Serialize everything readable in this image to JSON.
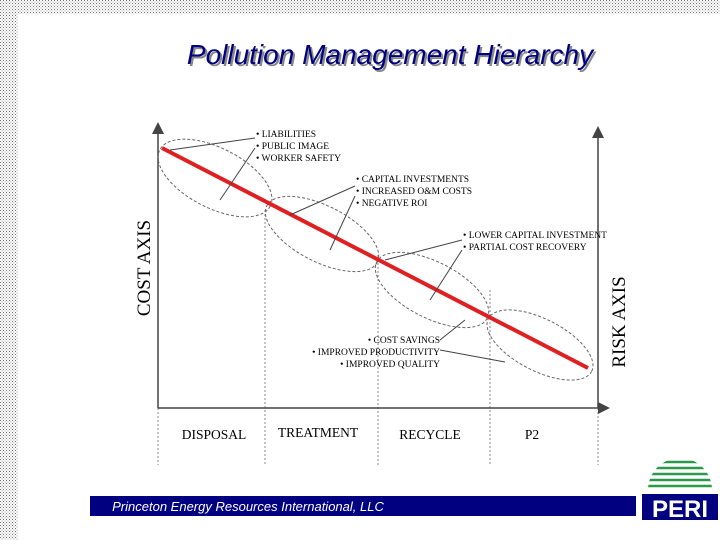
{
  "title": "Pollution Management Hierarchy",
  "axes": {
    "cost": "COST AXIS",
    "risk": "RISK AXIS"
  },
  "callouts": [
    {
      "items": [
        "• LIABILITIES",
        "• PUBLIC IMAGE",
        "• WORKER SAFETY"
      ]
    },
    {
      "items": [
        "• CAPITAL INVESTMENTS",
        "• INCREASED O&M COSTS",
        "• NEGATIVE ROI"
      ]
    },
    {
      "items": [
        "• LOWER CAPITAL INVESTMENT",
        "• PARTIAL COST RECOVERY"
      ]
    },
    {
      "items": [
        "• COST  SAVINGS",
        "• IMPROVED PRODUCTIVITY",
        "• IMPROVED QUALITY"
      ]
    }
  ],
  "stages": [
    "DISPOSAL",
    "TREATMENT",
    "RECYCLE",
    "P2"
  ],
  "footer": "Princeton Energy Resources International, LLC",
  "logo": "PERI"
}
